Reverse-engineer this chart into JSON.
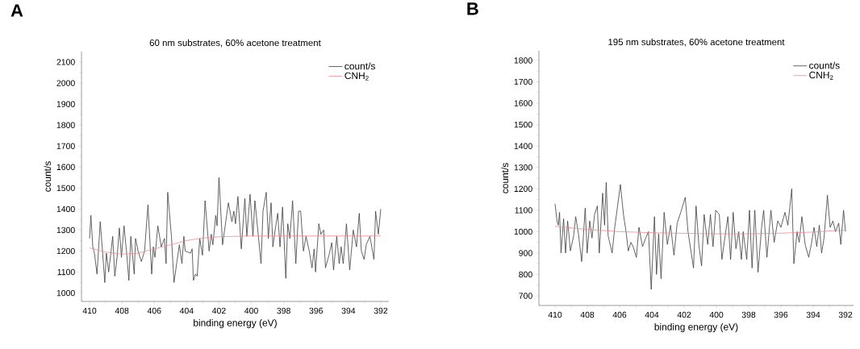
{
  "chart_data": [
    {
      "type": "line",
      "title": "60 nm substrates, 60% acetone treatment",
      "xlabel": "binding energy (eV)",
      "ylabel": "count/s",
      "annotations": [
        "A"
      ],
      "legend": "top right",
      "xlim": [
        410.5,
        391.5
      ],
      "xticks": [
        410,
        408,
        406,
        404,
        402,
        400,
        398,
        396,
        394,
        392
      ],
      "ylim": [
        960,
        2150
      ],
      "yticks": [
        1000,
        1100,
        1200,
        1300,
        1400,
        1500,
        1600,
        1700,
        1800,
        1900,
        2000,
        2100
      ],
      "series": [
        {
          "name": "count/s",
          "color": "#3c3c3c",
          "x": [
            410.0,
            409.92,
            409.8,
            409.7,
            409.54,
            409.34,
            409.2,
            409.06,
            408.96,
            408.82,
            408.7,
            408.57,
            408.44,
            408.3,
            408.16,
            408.03,
            407.87,
            407.72,
            407.57,
            407.45,
            407.24,
            407.16,
            407.0,
            406.8,
            406.6,
            406.39,
            406.16,
            406.06,
            405.96,
            405.78,
            405.57,
            405.37,
            405.27,
            405.17,
            404.94,
            404.78,
            404.6,
            404.45,
            404.29,
            404.17,
            404.09,
            403.76,
            403.66,
            403.58,
            403.46,
            403.35,
            403.19,
            403.02,
            402.86,
            402.61,
            402.48,
            402.38,
            402.2,
            402.12,
            402.0,
            401.78,
            401.42,
            401.2,
            401.08,
            400.98,
            400.83,
            400.62,
            400.4,
            400.28,
            400.08,
            399.9,
            399.78,
            399.4,
            399.28,
            399.08,
            398.95,
            398.78,
            398.67,
            398.53,
            398.37,
            398.23,
            398.07,
            397.87,
            397.75,
            397.62,
            397.45,
            397.25,
            397.08,
            396.95,
            396.78,
            396.62,
            396.42,
            396.25,
            396.12,
            396.03,
            395.83,
            395.7,
            395.53,
            395.42,
            395.2,
            395.03,
            394.92,
            394.72,
            394.57,
            394.45,
            394.32,
            394.12,
            393.92,
            393.7,
            393.5,
            393.33,
            393.2,
            393.03,
            392.9,
            392.67,
            392.42,
            392.32,
            392.15,
            392.0
          ],
          "values": [
            1260,
            1370,
            1220,
            1190,
            1090,
            1340,
            1200,
            1050,
            1190,
            1100,
            1180,
            1270,
            1080,
            1170,
            1310,
            1170,
            1320,
            1200,
            1060,
            1270,
            1090,
            1260,
            1200,
            1150,
            1200,
            1420,
            1090,
            1220,
            1170,
            1320,
            1220,
            1260,
            1140,
            1480,
            1270,
            1050,
            1150,
            1230,
            1140,
            1270,
            1200,
            1190,
            1210,
            1060,
            1090,
            1080,
            1260,
            1180,
            1440,
            1200,
            1280,
            1230,
            1370,
            1320,
            1550,
            1230,
            1430,
            1340,
            1390,
            1330,
            1460,
            1210,
            1450,
            1270,
            1470,
            1270,
            1440,
            1140,
            1390,
            1480,
            1260,
            1430,
            1220,
            1300,
            1380,
            1220,
            1410,
            1070,
            1330,
            1260,
            1440,
            1140,
            1390,
            1390,
            1200,
            1270,
            1200,
            1120,
            1210,
            1100,
            1330,
            1280,
            1300,
            1120,
            1180,
            1240,
            1110,
            1270,
            1140,
            1220,
            1140,
            1330,
            1110,
            1300,
            1220,
            1380,
            1200,
            1160,
            1230,
            1270,
            1160,
            1390,
            1280,
            1400
          ]
        },
        {
          "name": "CNH$_{2}$",
          "color": "#e98b92",
          "x": [
            410,
            409,
            408,
            407,
            406,
            405,
            404,
            403,
            402,
            400,
            398,
            396,
            394,
            392
          ],
          "values": [
            1215,
            1195,
            1185,
            1190,
            1210,
            1230,
            1250,
            1262,
            1268,
            1272,
            1272,
            1272,
            1272,
            1272
          ]
        }
      ]
    },
    {
      "type": "line",
      "title": "195 nm substrates, 60% acetone treatment",
      "xlabel": "binding energy (eV)",
      "ylabel": "count/s",
      "annotations": [
        "B"
      ],
      "legend": "top right",
      "xlim": [
        411,
        391.5
      ],
      "xticks": [
        410,
        408,
        406,
        404,
        402,
        400,
        398,
        396,
        394,
        392
      ],
      "ylim": [
        655,
        1845
      ],
      "yticks": [
        700,
        800,
        900,
        1000,
        1100,
        1200,
        1300,
        1400,
        1500,
        1600,
        1700,
        1800
      ],
      "series": [
        {
          "name": "count/s",
          "color": "#3c3c3c",
          "x": [
            410.0,
            409.88,
            409.8,
            409.72,
            409.63,
            409.47,
            409.35,
            409.22,
            409.05,
            408.85,
            408.72,
            408.55,
            408.35,
            408.13,
            408.01,
            407.85,
            407.71,
            407.55,
            407.38,
            407.26,
            407.05,
            406.93,
            406.83,
            406.71,
            406.46,
            406.3,
            405.95,
            405.76,
            405.6,
            405.46,
            405.3,
            405.16,
            404.96,
            404.8,
            404.58,
            404.38,
            404.21,
            404.04,
            403.84,
            403.71,
            403.58,
            403.43,
            403.24,
            403.04,
            402.84,
            402.63,
            402.43,
            402.21,
            401.93,
            401.76,
            401.42,
            401.26,
            401.09,
            400.92,
            400.76,
            400.54,
            400.37,
            400.21,
            400.04,
            399.82,
            399.66,
            399.46,
            399.29,
            399.12,
            398.96,
            398.79,
            398.62,
            398.45,
            398.34,
            398.12,
            397.95,
            397.79,
            397.62,
            397.42,
            397.2,
            397.07,
            396.87,
            396.62,
            396.42,
            396.2,
            396.0,
            395.75,
            395.57,
            395.33,
            395.2,
            395.0,
            394.87,
            394.7,
            394.5,
            394.28,
            394.12,
            393.95,
            393.78,
            393.62,
            393.48,
            393.33,
            393.12,
            392.95,
            392.78,
            392.62,
            392.42,
            392.29,
            392.12,
            392.0
          ],
          "values": [
            1130,
            1050,
            1030,
            1090,
            900,
            1060,
            900,
            1050,
            910,
            980,
            1070,
            990,
            860,
            1110,
            900,
            1050,
            970,
            1080,
            1120,
            900,
            1180,
            1030,
            1230,
            980,
            900,
            1020,
            1220,
            1080,
            1000,
            910,
            950,
            930,
            880,
            1020,
            930,
            970,
            1000,
            730,
            1070,
            800,
            990,
            780,
            1090,
            940,
            1030,
            890,
            1040,
            1090,
            1160,
            1000,
            830,
            1120,
            940,
            840,
            1080,
            940,
            1080,
            930,
            1100,
            1080,
            870,
            980,
            1070,
            870,
            1090,
            920,
            1000,
            870,
            1000,
            870,
            1100,
            830,
            1100,
            810,
            1020,
            1100,
            880,
            1100,
            950,
            1050,
            1020,
            1090,
            1030,
            1200,
            850,
            1000,
            950,
            1070,
            940,
            880,
            940,
            1020,
            930,
            1030,
            900,
            970,
            1170,
            1020,
            1050,
            1000,
            1040,
            940,
            1100,
            1000
          ]
        },
        {
          "name": "CNH$_{2}$",
          "color": "#e98b92",
          "x": [
            410,
            408,
            406,
            404,
            402,
            400,
            398,
            396,
            394,
            392
          ],
          "values": [
            1025,
            1010,
            1000,
            995,
            992,
            990,
            990,
            993,
            998,
            1008
          ]
        }
      ]
    }
  ]
}
